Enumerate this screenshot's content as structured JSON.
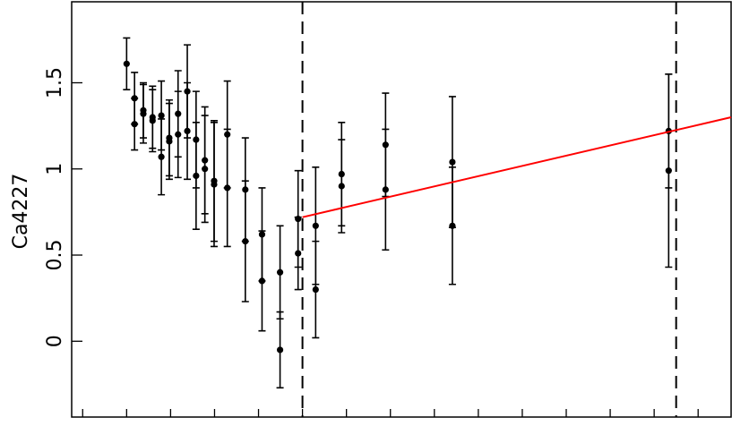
{
  "chart_data": {
    "type": "scatter",
    "ylabel": "Ca4227",
    "xlim": [
      -0.25,
      14.75
    ],
    "xticks": [
      0,
      1,
      2,
      3,
      4,
      5,
      6,
      7,
      8,
      9,
      10,
      11,
      12,
      13,
      14
    ],
    "ylim": [
      -0.44,
      1.97
    ],
    "yticks": [
      0,
      0.5,
      1,
      1.5
    ],
    "series": [
      {
        "type": "errorbar",
        "color": "#000000",
        "x": [
          1.0,
          1.18,
          1.18,
          1.38,
          1.38,
          1.59,
          1.59,
          1.79,
          1.79,
          1.97,
          1.97,
          2.17,
          2.17,
          2.38,
          2.38,
          2.58,
          2.58,
          2.78,
          2.78,
          2.99,
          2.99,
          3.29,
          3.29,
          3.7,
          3.7,
          4.08,
          4.08,
          4.49,
          4.49,
          4.9,
          4.9,
          5.3,
          5.3,
          5.89,
          5.89,
          6.89,
          6.89,
          8.41,
          8.41,
          13.33,
          13.33
        ],
        "values": [
          1.61,
          1.41,
          1.26,
          1.34,
          1.32,
          1.3,
          1.28,
          1.31,
          1.07,
          1.16,
          1.18,
          1.32,
          1.2,
          1.45,
          1.22,
          1.17,
          0.96,
          1.05,
          1.0,
          0.93,
          0.91,
          1.2,
          0.89,
          0.88,
          0.58,
          0.62,
          0.35,
          0.4,
          -0.05,
          0.71,
          0.51,
          0.67,
          0.3,
          0.97,
          0.9,
          1.14,
          0.88,
          1.04,
          0.67,
          1.22,
          0.99
        ],
        "errors": [
          0.15,
          0.15,
          0.15,
          0.16,
          0.17,
          0.18,
          0.18,
          0.2,
          0.22,
          0.22,
          0.22,
          0.25,
          0.25,
          0.27,
          0.28,
          0.28,
          0.31,
          0.31,
          0.31,
          0.35,
          0.36,
          0.31,
          0.34,
          0.3,
          0.35,
          0.27,
          0.29,
          0.27,
          0.22,
          0.28,
          0.21,
          0.34,
          0.28,
          0.3,
          0.27,
          0.3,
          0.35,
          0.38,
          0.34,
          0.33,
          0.56
        ]
      },
      {
        "type": "line",
        "color": "#ff0000",
        "x": [
          5.0,
          14.75
        ],
        "values": [
          0.72,
          1.3
        ]
      }
    ],
    "vlines": [
      5.0,
      13.5
    ]
  }
}
